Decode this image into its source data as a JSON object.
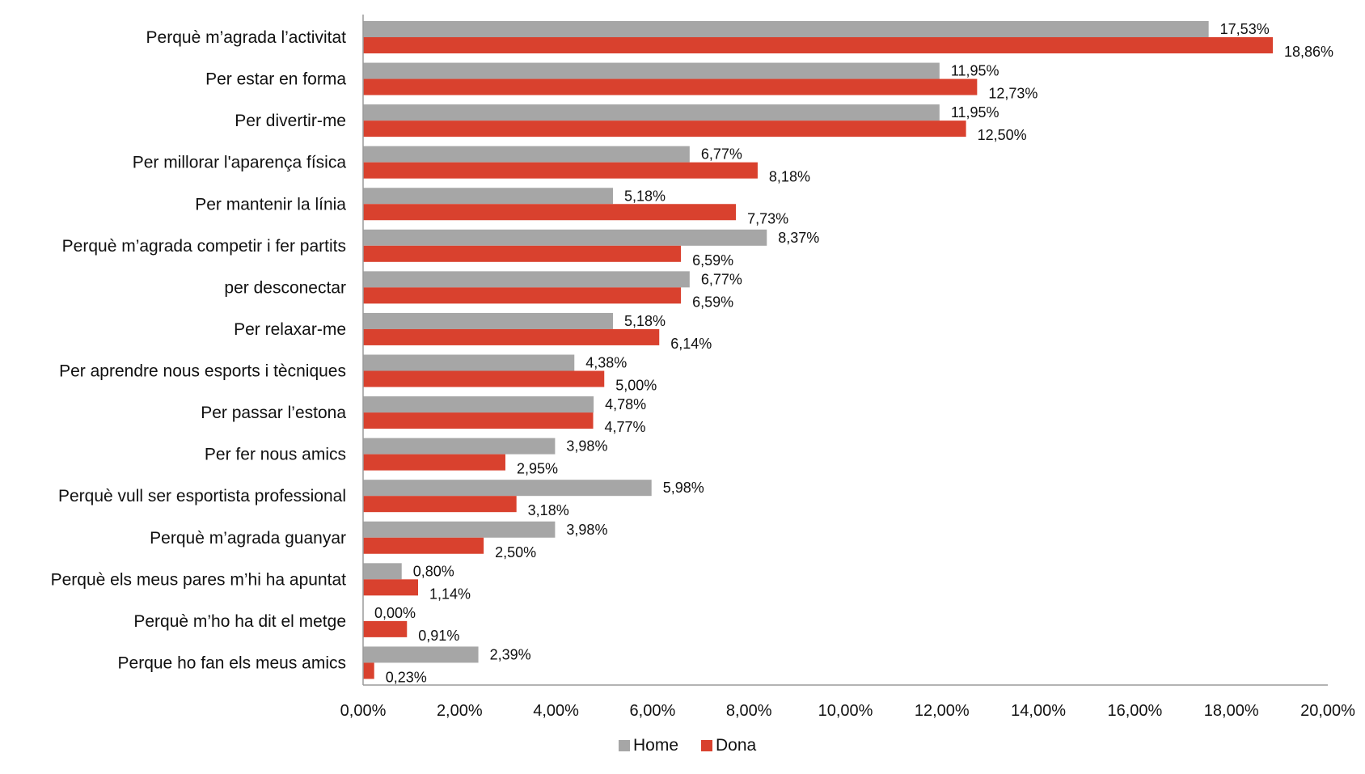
{
  "chart_data": {
    "type": "bar",
    "orientation": "horizontal",
    "categories": [
      "Perquè m’agrada l’activitat",
      "Per estar en forma",
      "Per divertir-me",
      "Per millorar l'aparença física",
      "Per mantenir la línia",
      "Perquè m’agrada competir i fer partits",
      "per desconectar",
      "Per relaxar-me",
      "Per aprendre nous esports i tècniques",
      "Per passar l’estona",
      "Per fer nous amics",
      "Perquè vull ser esportista professional",
      "Perquè m’agrada guanyar",
      "Perquè els meus pares m’hi ha apuntat",
      "Perquè m’ho ha dit el metge",
      "Perque ho fan els meus amics"
    ],
    "series": [
      {
        "name": "Home",
        "color": "#a6a6a6",
        "values": [
          17.53,
          11.95,
          11.95,
          6.77,
          5.18,
          8.37,
          6.77,
          5.18,
          4.38,
          4.78,
          3.98,
          5.98,
          3.98,
          0.8,
          0.0,
          2.39
        ],
        "labels": [
          "17,53%",
          "11,95%",
          "11,95%",
          "6,77%",
          "5,18%",
          "8,37%",
          "6,77%",
          "5,18%",
          "4,38%",
          "4,78%",
          "3,98%",
          "5,98%",
          "3,98%",
          "0,80%",
          "0,00%",
          "2,39%"
        ]
      },
      {
        "name": "Dona",
        "color": "#d9412e",
        "values": [
          18.86,
          12.73,
          12.5,
          8.18,
          7.73,
          6.59,
          6.59,
          6.14,
          5.0,
          4.77,
          2.95,
          3.18,
          2.5,
          1.14,
          0.91,
          0.23
        ],
        "labels": [
          "18,86%",
          "12,73%",
          "12,50%",
          "8,18%",
          "7,73%",
          "6,59%",
          "6,59%",
          "6,14%",
          "5,00%",
          "4,77%",
          "2,95%",
          "3,18%",
          "2,50%",
          "1,14%",
          "0,91%",
          "0,23%"
        ]
      }
    ],
    "xlim": [
      0,
      20
    ],
    "xticks": [
      0,
      2,
      4,
      6,
      8,
      10,
      12,
      14,
      16,
      18,
      20
    ],
    "xtick_labels": [
      "0,00%",
      "2,00%",
      "4,00%",
      "6,00%",
      "8,00%",
      "10,00%",
      "12,00%",
      "14,00%",
      "16,00%",
      "18,00%",
      "20,00%"
    ],
    "title": "",
    "xlabel": "",
    "ylabel": "",
    "grid": false,
    "legend_position": "bottom-center"
  }
}
